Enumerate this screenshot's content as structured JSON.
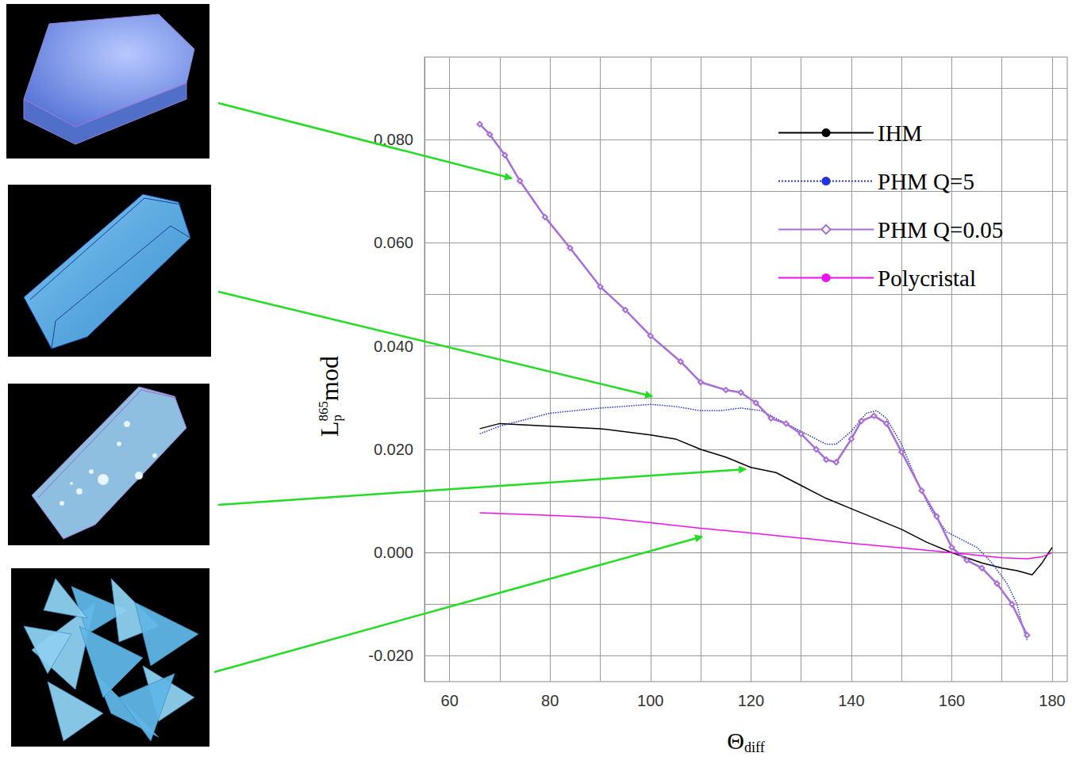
{
  "chart_data": {
    "type": "line",
    "xlabel": {
      "main": "Θ",
      "subscript": "diff"
    },
    "ylabel": {
      "main": "L",
      "subscript": "p",
      "superscript": "865",
      "suffix": "mod"
    },
    "xlim": [
      55,
      183
    ],
    "ylim": [
      -0.025,
      0.096
    ],
    "xticks": [
      60,
      80,
      100,
      120,
      140,
      160,
      180
    ],
    "yticks": [
      {
        "value": -0.02,
        "label": "-0.020"
      },
      {
        "value": 0,
        "label": "0.000"
      },
      {
        "value": 0.02,
        "label": "0.020"
      },
      {
        "value": 0.04,
        "label": "0.040"
      },
      {
        "value": 0.06,
        "label": "0.060"
      },
      {
        "value": 0.08,
        "label": "0.080"
      }
    ],
    "grid": true,
    "legend": "upper right",
    "series": [
      {
        "name": "IHM",
        "color": "#000000",
        "line_style": "solid",
        "x": [
          66,
          70,
          80,
          90,
          100,
          105,
          110,
          115,
          120,
          125,
          130,
          135,
          140,
          145,
          150,
          155,
          160,
          163,
          166,
          170,
          173,
          176,
          178,
          180
        ],
        "values": [
          0.024,
          0.025,
          0.0245,
          0.024,
          0.0228,
          0.022,
          0.02,
          0.0185,
          0.0165,
          0.0155,
          0.013,
          0.0105,
          0.0085,
          0.0065,
          0.0045,
          0.002,
          0.0,
          -0.001,
          -0.002,
          -0.003,
          -0.0035,
          -0.0043,
          -0.002,
          0.001
        ]
      },
      {
        "name": "PHM Q=5",
        "color": "#2233dd",
        "line_style": "dotted",
        "x": [
          66,
          70,
          80,
          90,
          100,
          105,
          110,
          114,
          118,
          122,
          127,
          132,
          135,
          137,
          140,
          143,
          145,
          147,
          150,
          153,
          156,
          159,
          162,
          165,
          168,
          171,
          173,
          174,
          175
        ],
        "values": [
          0.023,
          0.0245,
          0.027,
          0.028,
          0.0287,
          0.0283,
          0.0275,
          0.0275,
          0.028,
          0.0275,
          0.025,
          0.0225,
          0.021,
          0.021,
          0.0235,
          0.027,
          0.0275,
          0.026,
          0.021,
          0.014,
          0.008,
          0.004,
          0.0025,
          0.001,
          -0.002,
          -0.006,
          -0.01,
          -0.014,
          -0.017
        ]
      },
      {
        "name": "PHM Q=0.05",
        "color": "#a86ed8",
        "line_style": "solid",
        "marker": "diamond",
        "x": [
          66,
          68,
          71,
          74,
          79,
          84,
          90,
          95,
          100,
          106,
          110,
          115,
          118,
          121,
          124,
          127,
          130,
          133,
          135,
          137,
          140,
          142,
          144.5,
          147,
          150,
          154,
          157,
          160,
          163,
          166,
          169,
          172,
          175
        ],
        "values": [
          0.083,
          0.081,
          0.077,
          0.072,
          0.065,
          0.059,
          0.0515,
          0.047,
          0.042,
          0.037,
          0.033,
          0.0315,
          0.031,
          0.029,
          0.026,
          0.025,
          0.023,
          0.02,
          0.018,
          0.0175,
          0.022,
          0.0255,
          0.0265,
          0.025,
          0.0195,
          0.012,
          0.007,
          0.001,
          -0.0015,
          -0.003,
          -0.006,
          -0.01,
          -0.016
        ]
      },
      {
        "name": "Polycristal",
        "color": "#ee11ee",
        "line_style": "solid",
        "x": [
          66,
          80,
          90,
          100,
          110,
          120,
          130,
          140,
          150,
          160,
          170,
          175,
          178,
          180
        ],
        "values": [
          0.0077,
          0.0072,
          0.0068,
          0.0058,
          0.0047,
          0.0038,
          0.0028,
          0.0018,
          0.0009,
          0.0,
          -0.001,
          -0.0012,
          -0.0008,
          0.0
        ]
      }
    ]
  }
}
